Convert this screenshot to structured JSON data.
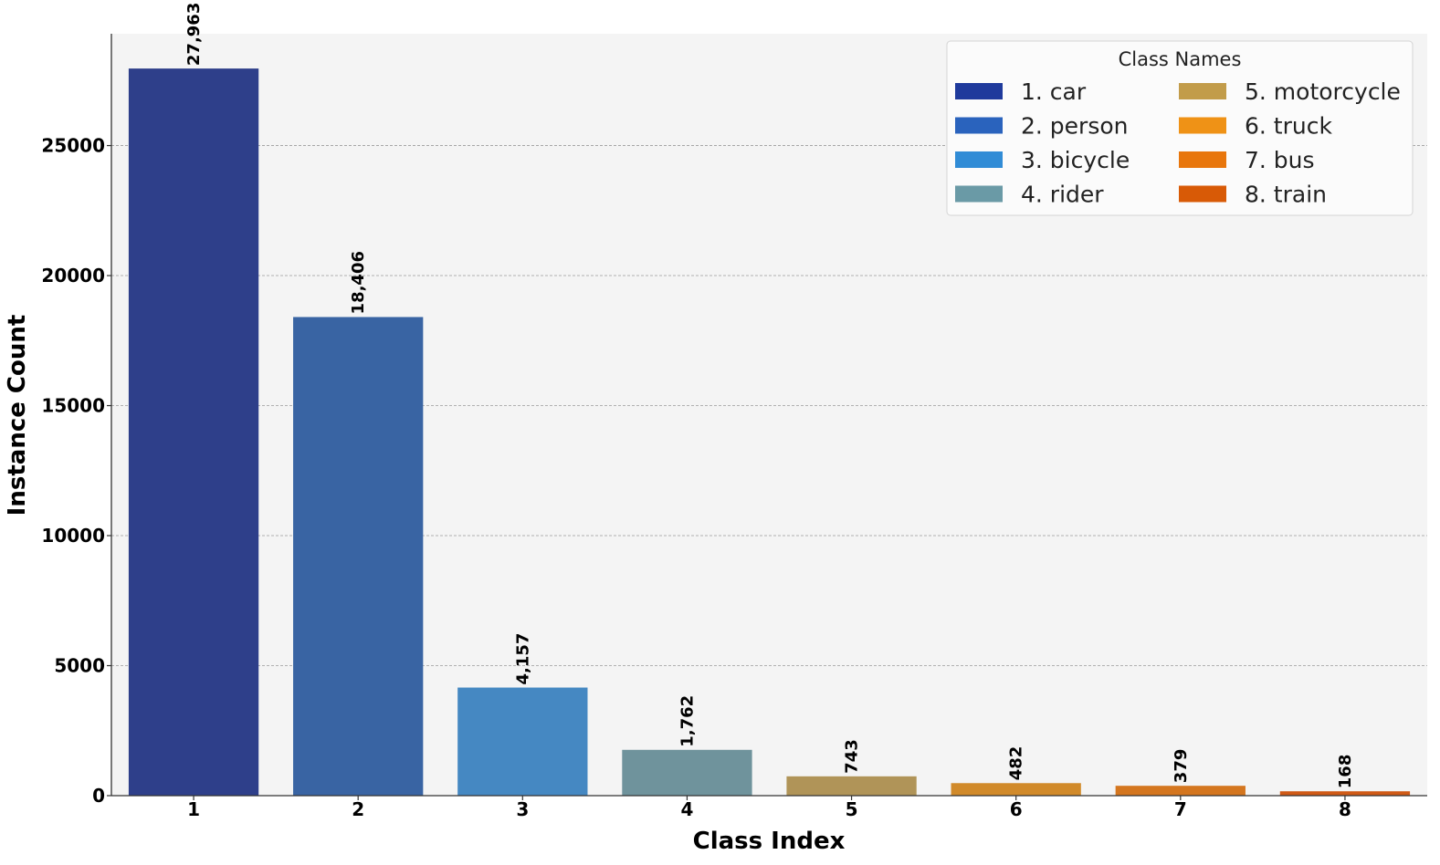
{
  "chart_data": {
    "type": "bar",
    "categories": [
      "1",
      "2",
      "3",
      "4",
      "5",
      "6",
      "7",
      "8"
    ],
    "values": [
      27963,
      18406,
      4157,
      1762,
      743,
      482,
      379,
      168
    ],
    "value_labels": [
      "27,963",
      "18,406",
      "4,157",
      "1,762",
      "743",
      "482",
      "379",
      "168"
    ],
    "bar_colors": [
      "#2e3f8a",
      "#3964a3",
      "#4588c2",
      "#6f939c",
      "#b09458",
      "#d18a2a",
      "#d4761f",
      "#d05a16"
    ],
    "xlabel": "Class Index",
    "ylabel": "Instance Count",
    "ylim": [
      0,
      29300
    ],
    "yticks": [
      0,
      5000,
      10000,
      15000,
      20000,
      25000
    ],
    "grid": "y",
    "legend": {
      "title": "Class Names",
      "placement": "top-right",
      "entries": [
        {
          "label": "1. car",
          "color": "#1f3a9c"
        },
        {
          "label": "2. person",
          "color": "#2a63bd"
        },
        {
          "label": "3. bicycle",
          "color": "#318cd6"
        },
        {
          "label": "4. rider",
          "color": "#6a9aa6"
        },
        {
          "label": "5. motorcycle",
          "color": "#c29c4a"
        },
        {
          "label": "6. truck",
          "color": "#ef9216"
        },
        {
          "label": "7. bus",
          "color": "#e8760c"
        },
        {
          "label": "8. train",
          "color": "#d85a06"
        }
      ]
    }
  }
}
